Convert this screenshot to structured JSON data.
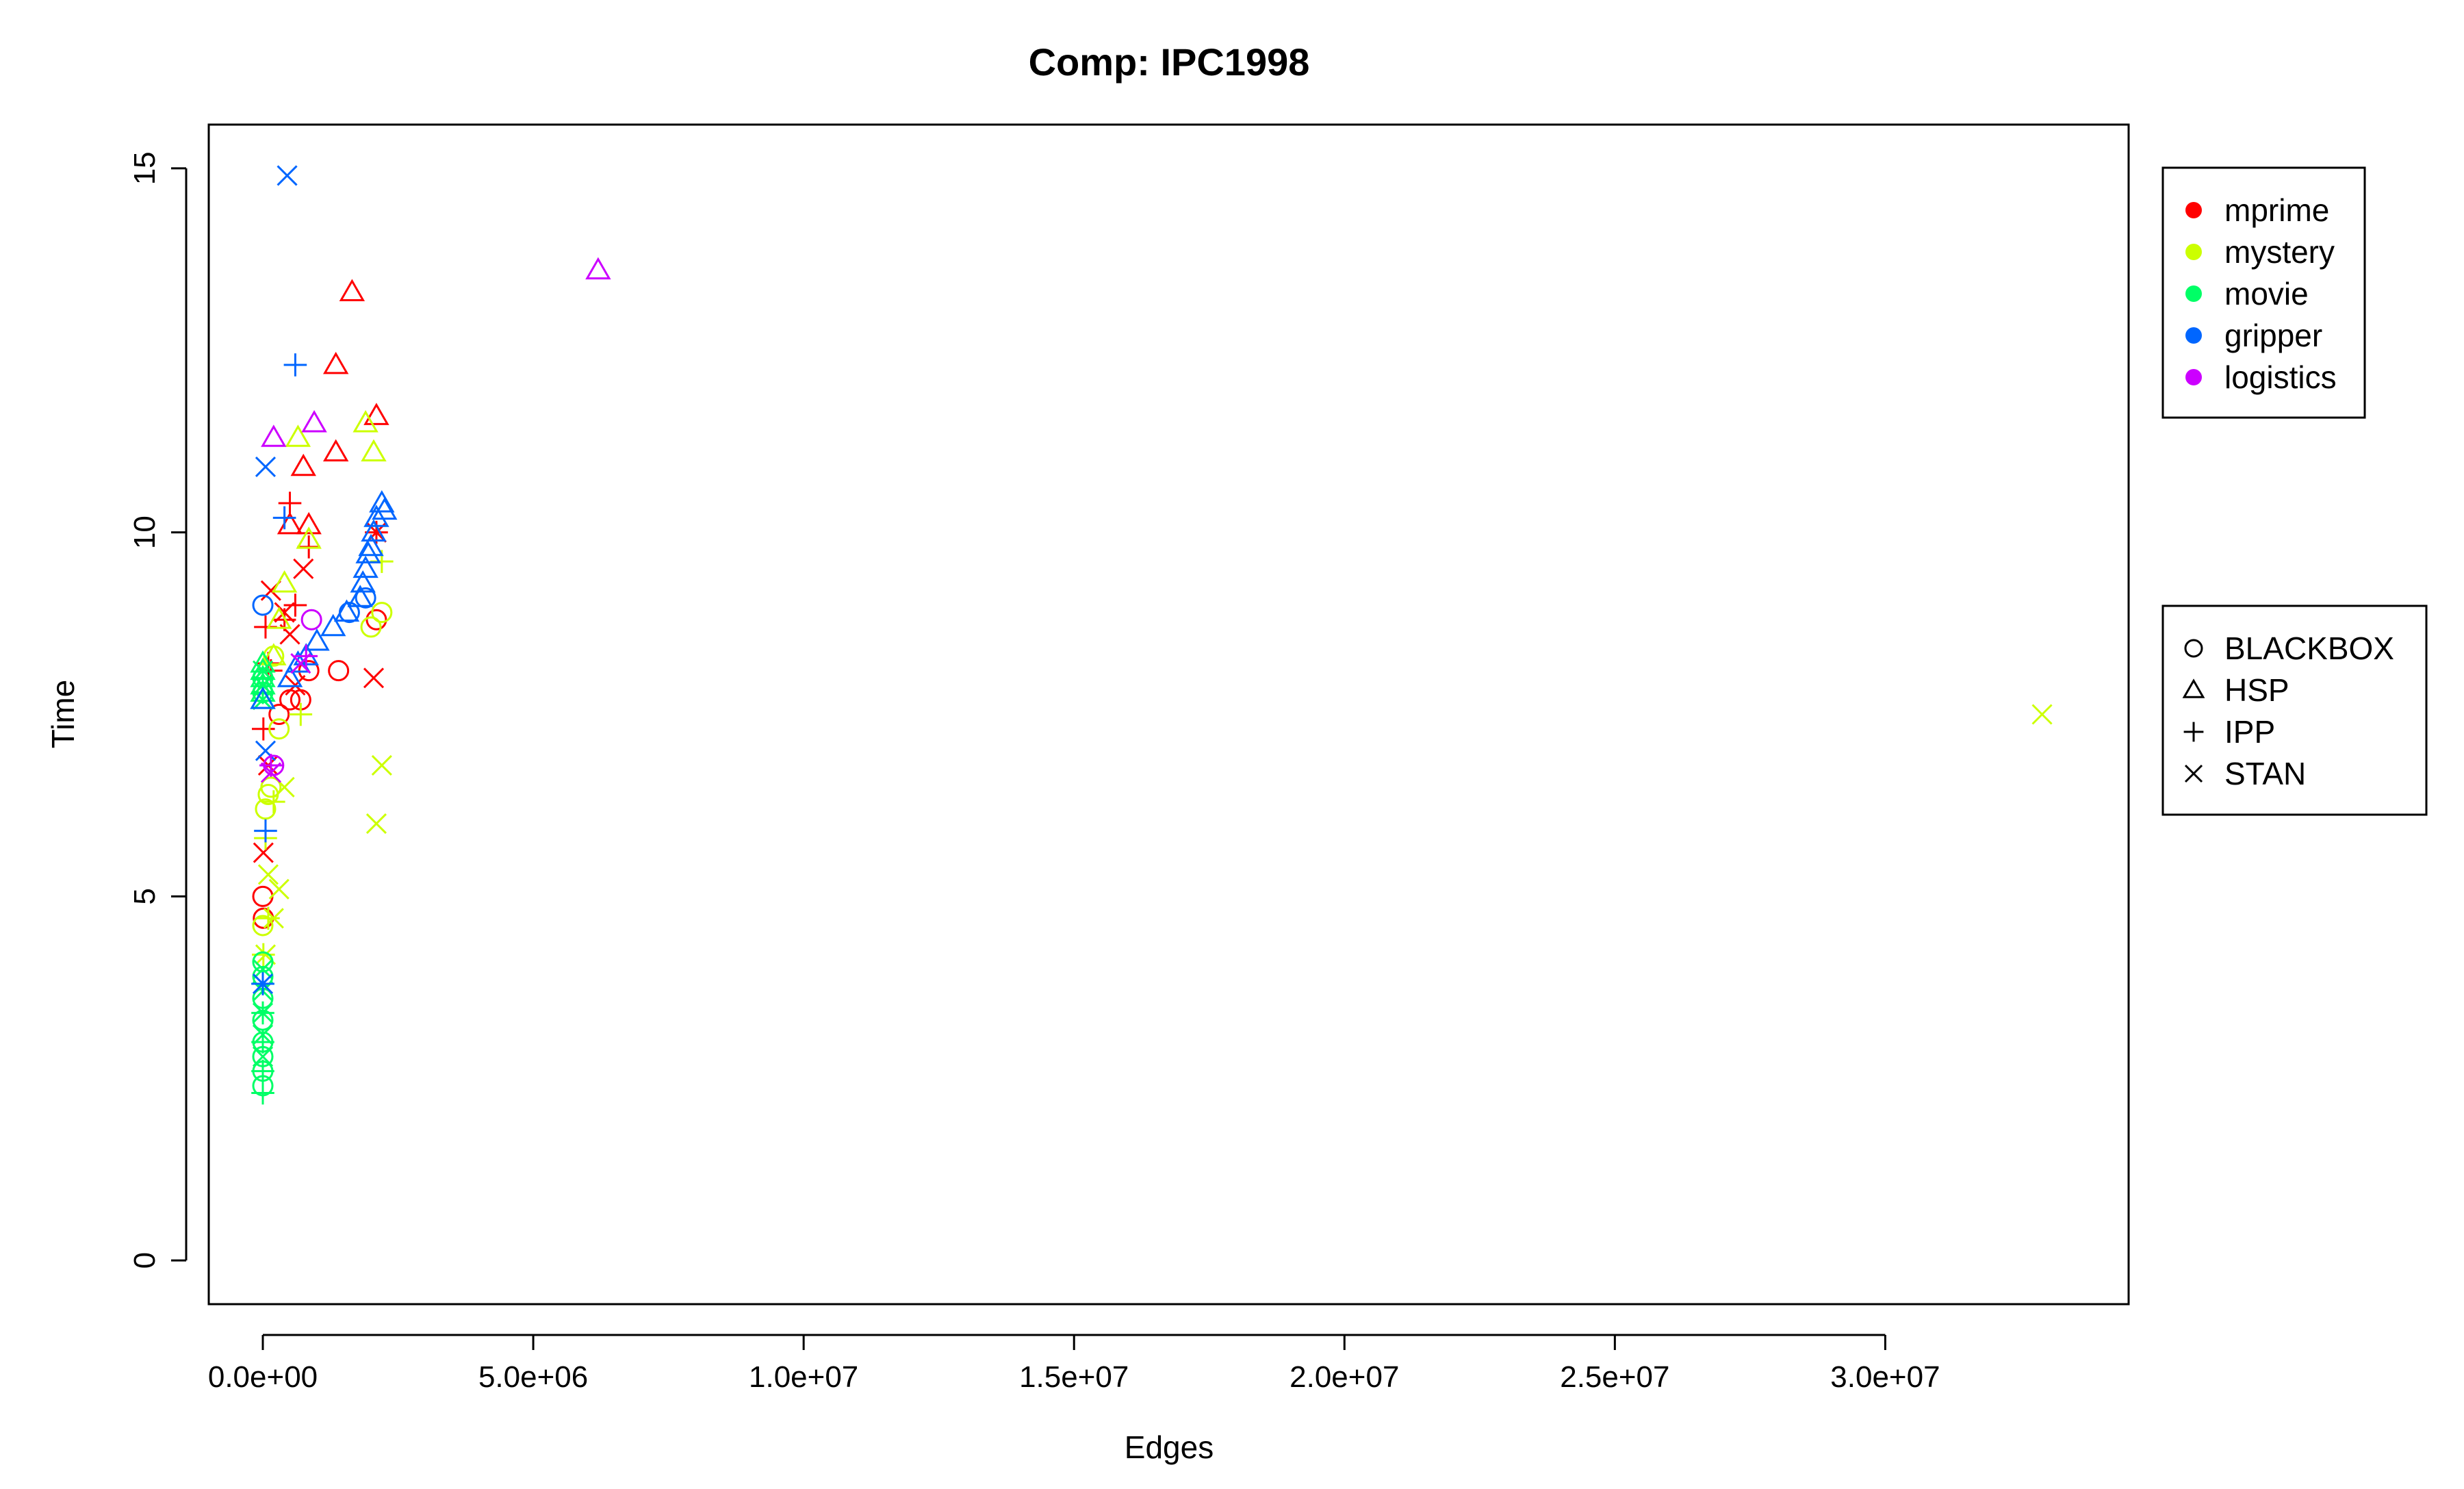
{
  "chart_data": {
    "type": "scatter",
    "title": "Comp: IPC1998",
    "xlabel": "Edges",
    "ylabel": "Time",
    "xlim": [
      -1000000,
      34500000
    ],
    "ylim": [
      -0.6,
      15.6
    ],
    "x_ticks": [
      0,
      5000000,
      10000000,
      15000000,
      20000000,
      25000000,
      30000000
    ],
    "x_tick_labels": [
      "0.0e+00",
      "5.0e+06",
      "1.0e+07",
      "1.5e+07",
      "2.0e+07",
      "2.5e+07",
      "3.0e+07"
    ],
    "y_ticks": [
      0,
      5,
      10,
      15
    ],
    "y_tick_labels": [
      "0",
      "5",
      "10",
      "15"
    ],
    "grid": false,
    "domain_legend": {
      "placement": "top-right, outside plot",
      "entries": [
        {
          "name": "mprime",
          "color": "#FF0000"
        },
        {
          "name": "mystery",
          "color": "#CCFF00"
        },
        {
          "name": "movie",
          "color": "#00FF66"
        },
        {
          "name": "gripper",
          "color": "#0066FF"
        },
        {
          "name": "logistics",
          "color": "#CC00FF"
        }
      ]
    },
    "planner_legend": {
      "placement": "right, outside plot",
      "entries": [
        {
          "name": "BLACKBOX",
          "symbol": "circle"
        },
        {
          "name": "HSP",
          "symbol": "triangle"
        },
        {
          "name": "IPP",
          "symbol": "plus"
        },
        {
          "name": "STAN",
          "symbol": "cross"
        }
      ]
    },
    "series": [
      {
        "domain": "mprime",
        "planner": "BLACKBOX",
        "x": [
          0,
          10000,
          300000,
          500000,
          700000,
          850000,
          1400000,
          2100000
        ],
        "y": [
          5.0,
          4.7,
          7.5,
          7.7,
          7.7,
          8.1,
          8.1,
          8.8
        ]
      },
      {
        "domain": "mprime",
        "planner": "HSP",
        "x": [
          1650000,
          1350000,
          1350000,
          2100000,
          750000,
          850000,
          500000
        ],
        "y": [
          13.3,
          12.3,
          11.1,
          11.6,
          10.9,
          10.1,
          10.1
        ]
      },
      {
        "domain": "mprime",
        "planner": "IPP",
        "x": [
          10000,
          100000,
          500000,
          600000,
          850000,
          2100000,
          400000,
          150000,
          50000
        ],
        "y": [
          7.3,
          8.2,
          10.4,
          9.0,
          9.8,
          10.0,
          8.8,
          8.1,
          8.7
        ]
      },
      {
        "domain": "mprime",
        "planner": "STAN",
        "x": [
          10000,
          150000,
          400000,
          500000,
          600000,
          750000,
          2100000,
          2050000,
          100000
        ],
        "y": [
          5.6,
          9.2,
          8.9,
          8.6,
          7.9,
          9.5,
          10.0,
          8.0,
          6.8
        ]
      },
      {
        "domain": "mystery",
        "planner": "BLACKBOX",
        "x": [
          0,
          50000,
          100000,
          150000,
          200000,
          300000,
          2000000,
          2200000
        ],
        "y": [
          4.6,
          6.2,
          6.4,
          6.5,
          8.3,
          7.3,
          8.7,
          8.9
        ]
      },
      {
        "domain": "mystery",
        "planner": "HSP",
        "x": [
          1900000,
          2050000,
          650000,
          400000,
          300000,
          850000,
          200000
        ],
        "y": [
          11.5,
          11.1,
          11.3,
          9.3,
          8.8,
          9.9,
          8.3
        ]
      },
      {
        "domain": "mystery",
        "planner": "IPP",
        "x": [
          10000,
          100000,
          200000,
          700000,
          2200000,
          50000
        ],
        "y": [
          4.2,
          4.7,
          6.3,
          7.5,
          9.6,
          5.8
        ]
      },
      {
        "domain": "mystery",
        "planner": "STAN",
        "x": [
          200000,
          300000,
          400000,
          2200000,
          2100000,
          32900000,
          100000,
          50000
        ],
        "y": [
          4.7,
          5.1,
          6.5,
          6.8,
          6.0,
          7.5,
          5.3,
          4.2
        ]
      },
      {
        "domain": "movie",
        "planner": "BLACKBOX",
        "x": [
          0,
          0,
          0,
          0,
          0,
          0,
          0,
          0,
          0,
          0
        ],
        "y": [
          2.4,
          2.6,
          2.8,
          3.0,
          3.3,
          3.6,
          3.9,
          4.1,
          7.8,
          8.0
        ]
      },
      {
        "domain": "movie",
        "planner": "HSP",
        "x": [
          0,
          0,
          0,
          0,
          0,
          0
        ],
        "y": [
          7.7,
          7.8,
          7.9,
          8.0,
          8.1,
          8.2
        ]
      },
      {
        "domain": "movie",
        "planner": "IPP",
        "x": [
          0,
          0,
          0,
          0,
          0,
          0,
          0
        ],
        "y": [
          2.3,
          2.6,
          3.0,
          3.4,
          3.8,
          7.8,
          8.0
        ]
      },
      {
        "domain": "movie",
        "planner": "STAN",
        "x": [
          0,
          0,
          0,
          0,
          0,
          0,
          0,
          0
        ],
        "y": [
          2.8,
          3.1,
          3.4,
          3.7,
          4.0,
          7.7,
          7.9,
          8.1
        ]
      },
      {
        "domain": "gripper",
        "planner": "BLACKBOX",
        "x": [
          0,
          1600000,
          1900000
        ],
        "y": [
          9.0,
          8.9,
          9.1
        ]
      },
      {
        "domain": "gripper",
        "planner": "HSP",
        "x": [
          0,
          500000,
          650000,
          800000,
          1000000,
          1300000,
          1550000,
          1800000,
          1850000,
          1900000,
          1950000,
          2000000,
          2050000,
          2100000,
          2200000,
          2250000
        ],
        "y": [
          7.7,
          8.0,
          8.2,
          8.3,
          8.5,
          8.7,
          8.9,
          9.1,
          9.3,
          9.5,
          9.7,
          9.8,
          10.0,
          10.2,
          10.4,
          10.3
        ]
      },
      {
        "domain": "gripper",
        "planner": "IPP",
        "x": [
          0,
          50000,
          600000,
          400000
        ],
        "y": [
          3.8,
          5.9,
          12.3,
          10.2
        ]
      },
      {
        "domain": "gripper",
        "planner": "STAN",
        "x": [
          0,
          50000,
          450000,
          50000
        ],
        "y": [
          3.8,
          7.0,
          14.9,
          10.9
        ]
      },
      {
        "domain": "logistics",
        "planner": "BLACKBOX",
        "x": [
          900000,
          200000
        ],
        "y": [
          8.8,
          6.8
        ]
      },
      {
        "domain": "logistics",
        "planner": "HSP",
        "x": [
          200000,
          950000,
          6200000
        ],
        "y": [
          11.3,
          11.5,
          13.6
        ]
      },
      {
        "domain": "logistics",
        "planner": "IPP",
        "x": [
          800000,
          150000
        ],
        "y": [
          8.3,
          6.8
        ]
      },
      {
        "domain": "logistics",
        "planner": "STAN",
        "x": [
          150000,
          700000
        ],
        "y": [
          6.7,
          8.2
        ]
      }
    ]
  }
}
